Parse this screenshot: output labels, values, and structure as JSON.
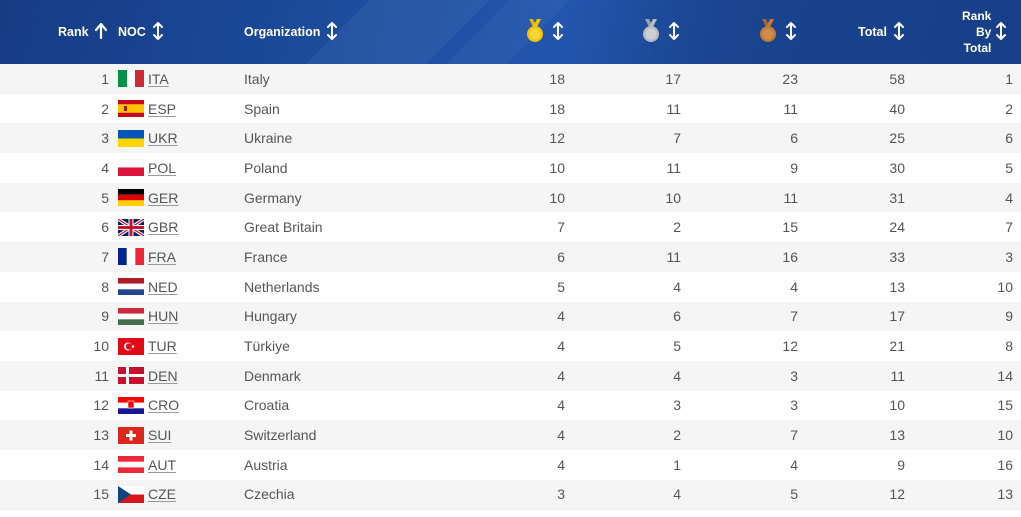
{
  "header": {
    "rank_label": "Rank",
    "noc_label": "NOC",
    "org_label": "Organization",
    "gold_icon": "gold-medal-icon",
    "silver_icon": "silver-medal-icon",
    "bronze_icon": "bronze-medal-icon",
    "total_label": "Total",
    "rank_by_total_line1": "Rank",
    "rank_by_total_line2": "By",
    "rank_by_total_line3": "Total"
  },
  "colors": {
    "header_bg": "#1d4fa2",
    "gold": "#f2c500",
    "silver": "#b8bcc2",
    "bronze": "#c07a3a"
  },
  "rows": [
    {
      "rank": "1",
      "noc": "ITA",
      "org": "Italy",
      "gold": "18",
      "silver": "17",
      "bronze": "23",
      "total": "58",
      "rank_total": "1"
    },
    {
      "rank": "2",
      "noc": "ESP",
      "org": "Spain",
      "gold": "18",
      "silver": "11",
      "bronze": "11",
      "total": "40",
      "rank_total": "2"
    },
    {
      "rank": "3",
      "noc": "UKR",
      "org": "Ukraine",
      "gold": "12",
      "silver": "7",
      "bronze": "6",
      "total": "25",
      "rank_total": "6"
    },
    {
      "rank": "4",
      "noc": "POL",
      "org": "Poland",
      "gold": "10",
      "silver": "11",
      "bronze": "9",
      "total": "30",
      "rank_total": "5"
    },
    {
      "rank": "5",
      "noc": "GER",
      "org": "Germany",
      "gold": "10",
      "silver": "10",
      "bronze": "11",
      "total": "31",
      "rank_total": "4"
    },
    {
      "rank": "6",
      "noc": "GBR",
      "org": "Great Britain",
      "gold": "7",
      "silver": "2",
      "bronze": "15",
      "total": "24",
      "rank_total": "7"
    },
    {
      "rank": "7",
      "noc": "FRA",
      "org": "France",
      "gold": "6",
      "silver": "11",
      "bronze": "16",
      "total": "33",
      "rank_total": "3"
    },
    {
      "rank": "8",
      "noc": "NED",
      "org": "Netherlands",
      "gold": "5",
      "silver": "4",
      "bronze": "4",
      "total": "13",
      "rank_total": "10"
    },
    {
      "rank": "9",
      "noc": "HUN",
      "org": "Hungary",
      "gold": "4",
      "silver": "6",
      "bronze": "7",
      "total": "17",
      "rank_total": "9"
    },
    {
      "rank": "10",
      "noc": "TUR",
      "org": "Türkiye",
      "gold": "4",
      "silver": "5",
      "bronze": "12",
      "total": "21",
      "rank_total": "8"
    },
    {
      "rank": "11",
      "noc": "DEN",
      "org": "Denmark",
      "gold": "4",
      "silver": "4",
      "bronze": "3",
      "total": "11",
      "rank_total": "14"
    },
    {
      "rank": "12",
      "noc": "CRO",
      "org": "Croatia",
      "gold": "4",
      "silver": "3",
      "bronze": "3",
      "total": "10",
      "rank_total": "15"
    },
    {
      "rank": "13",
      "noc": "SUI",
      "org": "Switzerland",
      "gold": "4",
      "silver": "2",
      "bronze": "7",
      "total": "13",
      "rank_total": "10"
    },
    {
      "rank": "14",
      "noc": "AUT",
      "org": "Austria",
      "gold": "4",
      "silver": "1",
      "bronze": "4",
      "total": "9",
      "rank_total": "16"
    },
    {
      "rank": "15",
      "noc": "CZE",
      "org": "Czechia",
      "gold": "3",
      "silver": "4",
      "bronze": "5",
      "total": "12",
      "rank_total": "13"
    }
  ]
}
